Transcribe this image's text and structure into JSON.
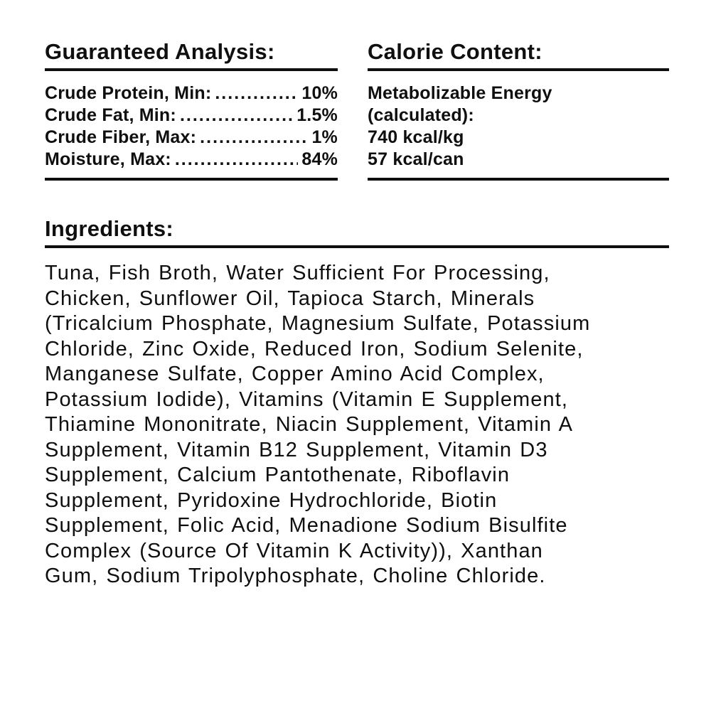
{
  "colors": {
    "background": "#ffffff",
    "text": "#0f0f0f",
    "rule": "#0f0f0f"
  },
  "guaranteed_analysis": {
    "heading": "Guaranteed Analysis:",
    "leader_dots": "........................................................................",
    "rows": [
      {
        "label": "Crude Protein, Min:",
        "value": "10%"
      },
      {
        "label": "Crude Fat, Min:",
        "value": "1.5%"
      },
      {
        "label": "Crude Fiber, Max:",
        "value": "1%"
      },
      {
        "label": "Moisture, Max:",
        "value": "84%"
      }
    ]
  },
  "calorie_content": {
    "heading": "Calorie Content:",
    "lines": [
      "Metabolizable Energy",
      "(calculated):",
      "740 kcal/kg",
      "57 kcal/can"
    ]
  },
  "ingredients": {
    "heading": "Ingredients:",
    "text": "Tuna, Fish Broth, Water Sufficient For Processing,\nChicken, Sunflower Oil, Tapioca Starch, Minerals\n(Tricalcium Phosphate, Magnesium Sulfate, Potassium\nChloride, Zinc Oxide, Reduced Iron, Sodium Selenite,\nManganese Sulfate, Copper Amino Acid Complex,\nPotassium Iodide), Vitamins (Vitamin E Supplement,\nThiamine Mononitrate, Niacin Supplement, Vitamin A\nSupplement, Vitamin B12 Supplement, Vitamin D3\nSupplement, Calcium Pantothenate, Riboflavin\nSupplement, Pyridoxine Hydrochloride, Biotin\nSupplement, Folic Acid, Menadione Sodium Bisulfite\nComplex (Source Of Vitamin K Activity)), Xanthan\nGum, Sodium Tripolyphosphate, Choline Chloride."
  }
}
